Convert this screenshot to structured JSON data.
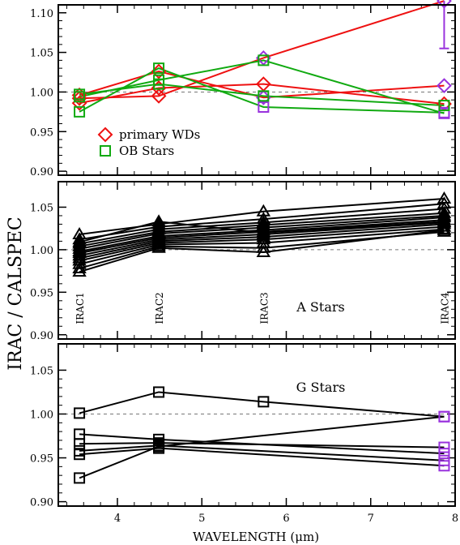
{
  "chart_data": {
    "type": "line",
    "ylabel": "IRAC / CALSPEC",
    "xlabel": "WAVELENGTH (μm)",
    "x_ticks": [
      "4",
      "5",
      "6",
      "7",
      "8"
    ],
    "xlim": [
      3.3,
      8.0
    ],
    "colors": {
      "red": "#ee1111",
      "green": "#11aa11",
      "purple": "#9933dd",
      "black": "#000000",
      "ref": "#777777"
    },
    "panels": [
      {
        "id": "top",
        "ylim": [
          0.895,
          1.11
        ],
        "y_ticks": [
          "0.90",
          "0.95",
          "1.00",
          "1.05",
          "1.10"
        ],
        "legend": [
          {
            "label": "primary WDs",
            "color": "red",
            "marker": "diamond"
          },
          {
            "label": "OB Stars",
            "color": "green",
            "marker": "square"
          }
        ],
        "series": [
          {
            "color": "red",
            "marker": "diamond",
            "x": [
              3.55,
              4.49,
              5.73,
              7.87
            ],
            "y": [
              0.992,
              0.995,
              1.043,
              1.115
            ],
            "mcolors": [
              "red",
              "red",
              "purple",
              "purple"
            ]
          },
          {
            "color": "red",
            "marker": "diamond",
            "x": [
              3.55,
              4.49,
              5.73,
              7.87
            ],
            "y": [
              0.986,
              1.005,
              1.01,
              0.985
            ],
            "mcolors": [
              "red",
              "red",
              "red",
              "red"
            ]
          },
          {
            "color": "red",
            "marker": "diamond",
            "x": [
              3.55,
              4.49,
              5.73,
              7.87
            ],
            "y": [
              0.996,
              1.026,
              0.993,
              1.008
            ],
            "mcolors": [
              "red",
              "red",
              "purple",
              "purple"
            ]
          },
          {
            "color": "green",
            "marker": "square",
            "x": [
              3.55,
              4.49,
              5.73,
              7.87
            ],
            "y": [
              0.975,
              1.03,
              0.981,
              0.974
            ],
            "mcolors": [
              "green",
              "green",
              "purple",
              "purple"
            ]
          },
          {
            "color": "green",
            "marker": "square",
            "x": [
              3.55,
              4.49,
              5.73,
              7.87
            ],
            "y": [
              0.994,
              1.015,
              1.04,
              0.973
            ],
            "mcolors": [
              "green",
              "green",
              "green",
              "purple"
            ]
          },
          {
            "color": "green",
            "marker": "square",
            "x": [
              3.55,
              4.49,
              5.73,
              7.87
            ],
            "y": [
              0.997,
              1.01,
              0.995,
              0.983
            ],
            "mcolors": [
              "green",
              "green",
              "green",
              "green"
            ]
          }
        ],
        "errorbars": [
          {
            "x": 7.87,
            "y_low": 1.055,
            "y_high": 1.115,
            "color": "purple"
          }
        ]
      },
      {
        "id": "middle",
        "ylim": [
          0.895,
          1.08
        ],
        "y_ticks": [
          "0.90",
          "0.95",
          "1.00",
          "1.05"
        ],
        "annotation": "A Stars",
        "band_labels": [
          {
            "text": "IRAC1",
            "x": 3.55
          },
          {
            "text": "IRAC2",
            "x": 4.49
          },
          {
            "text": "IRAC3",
            "x": 5.73
          },
          {
            "text": "IRAC4",
            "x": 7.87
          }
        ],
        "series": [
          {
            "color": "black",
            "marker": "triangle",
            "x": [
              3.55,
              4.49,
              5.73,
              7.87
            ],
            "y": [
              1.018,
              1.03,
              1.045,
              1.06
            ]
          },
          {
            "color": "black",
            "marker": "triangle",
            "x": [
              3.55,
              4.49,
              5.73,
              7.87
            ],
            "y": [
              1.012,
              1.027,
              1.036,
              1.054
            ]
          },
          {
            "color": "black",
            "marker": "triangle",
            "x": [
              3.55,
              4.49,
              5.73,
              7.87
            ],
            "y": [
              1.007,
              1.024,
              1.032,
              1.048
            ]
          },
          {
            "color": "black",
            "marker": "triangle",
            "x": [
              3.55,
              4.49,
              5.73,
              7.87
            ],
            "y": [
              1.004,
              1.021,
              1.029,
              1.043
            ]
          },
          {
            "color": "black",
            "marker": "triangle",
            "x": [
              3.55,
              4.49,
              5.73,
              7.87
            ],
            "y": [
              1.001,
              1.019,
              1.026,
              1.04
            ]
          },
          {
            "color": "black",
            "marker": "triangle",
            "x": [
              3.55,
              4.49,
              5.73,
              7.87
            ],
            "y": [
              0.998,
              1.016,
              1.023,
              1.038
            ]
          },
          {
            "color": "black",
            "marker": "triangle",
            "x": [
              3.55,
              4.49,
              5.73,
              7.87
            ],
            "y": [
              0.996,
              1.014,
              1.021,
              1.035
            ]
          },
          {
            "color": "black",
            "marker": "triangle",
            "x": [
              3.55,
              4.49,
              5.73,
              7.87
            ],
            "y": [
              0.993,
              1.012,
              1.018,
              1.032
            ]
          },
          {
            "color": "black",
            "marker": "triangle",
            "x": [
              3.55,
              4.49,
              5.73,
              7.87
            ],
            "y": [
              0.99,
              1.01,
              1.015,
              1.03
            ]
          },
          {
            "color": "black",
            "marker": "triangle",
            "x": [
              3.55,
              4.49,
              5.73,
              7.87
            ],
            "y": [
              0.987,
              1.008,
              1.012,
              1.027
            ]
          },
          {
            "color": "black",
            "marker": "triangle",
            "x": [
              3.55,
              4.49,
              5.73,
              7.87
            ],
            "y": [
              0.983,
              1.006,
              1.008,
              1.024
            ]
          },
          {
            "color": "black",
            "marker": "triangle",
            "x": [
              3.55,
              4.49,
              5.73,
              7.87
            ],
            "y": [
              0.978,
              1.004,
              1.002,
              1.021
            ]
          },
          {
            "color": "black",
            "marker": "triangle",
            "x": [
              3.55,
              4.49,
              5.73,
              7.87
            ],
            "y": [
              0.974,
              1.002,
              0.997,
              1.023
            ]
          },
          {
            "color": "black",
            "marker": "triangle",
            "x": [
              3.55,
              4.49,
              5.73,
              7.87
            ],
            "y": [
              1.009,
              1.033,
              1.02,
              1.033
            ]
          }
        ]
      },
      {
        "id": "bottom",
        "ylim": [
          0.895,
          1.08
        ],
        "y_ticks": [
          "0.90",
          "0.95",
          "1.00",
          "1.05"
        ],
        "annotation": "G Stars",
        "series": [
          {
            "color": "black",
            "marker": "square",
            "x": [
              3.55,
              4.49,
              5.73,
              7.87
            ],
            "y": [
              1.001,
              1.025,
              1.014,
              0.997
            ],
            "mcolors": [
              "black",
              "black",
              "black",
              "purple"
            ]
          },
          {
            "color": "black",
            "marker": "square",
            "x": [
              3.55,
              4.49,
              7.87
            ],
            "y": [
              0.927,
              0.963,
              0.997
            ],
            "mcolors": [
              "black",
              "black",
              "purple"
            ]
          },
          {
            "color": "black",
            "marker": "square",
            "x": [
              3.55,
              4.49,
              7.87
            ],
            "y": [
              0.977,
              0.971,
              0.955
            ],
            "mcolors": [
              "black",
              "black",
              "purple"
            ]
          },
          {
            "color": "black",
            "marker": "square",
            "x": [
              3.55,
              4.49,
              7.87
            ],
            "y": [
              0.966,
              0.967,
              0.962
            ],
            "mcolors": [
              "black",
              "black",
              "purple"
            ]
          },
          {
            "color": "black",
            "marker": "square",
            "x": [
              3.55,
              4.49,
              7.87
            ],
            "y": [
              0.958,
              0.964,
              0.947
            ],
            "mcolors": [
              "black",
              "black",
              "purple"
            ]
          },
          {
            "color": "black",
            "marker": "square",
            "x": [
              3.55,
              4.49,
              7.87
            ],
            "y": [
              0.954,
              0.961,
              0.941
            ],
            "mcolors": [
              "black",
              "black",
              "purple"
            ]
          }
        ]
      }
    ]
  }
}
